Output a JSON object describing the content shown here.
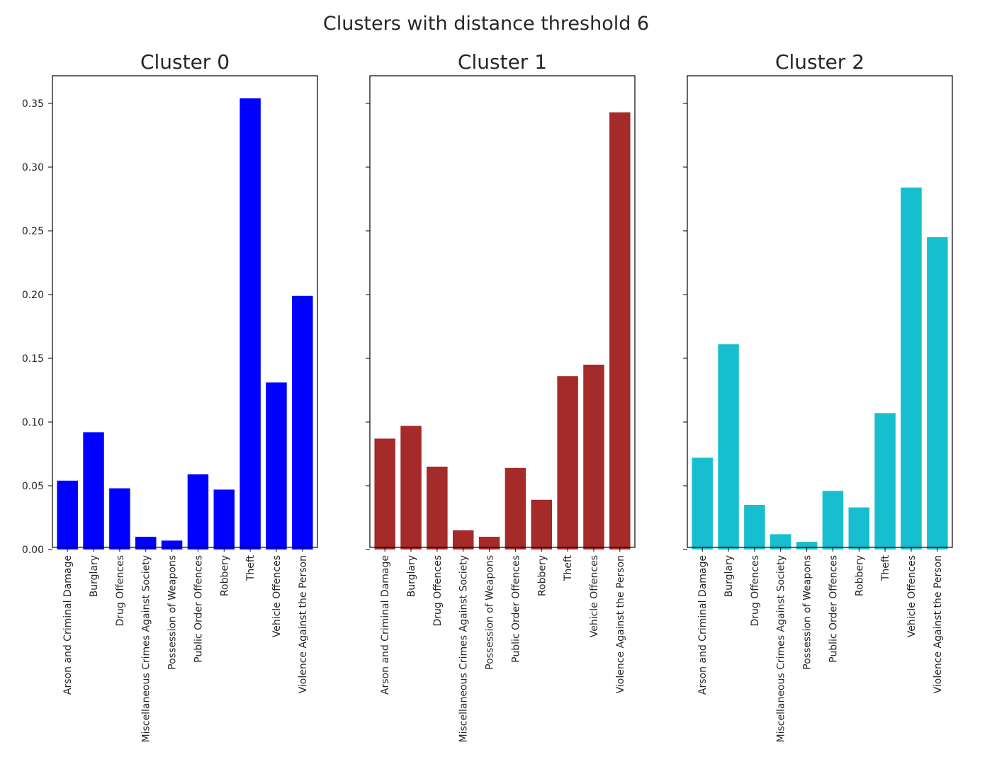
{
  "figure": {
    "suptitle": "Clusters with distance threshold 6"
  },
  "chart_data": [
    {
      "type": "bar",
      "title": "Cluster 0",
      "color": "#0000ff",
      "categories": [
        "Arson and Criminal Damage",
        "Burglary",
        "Drug Offences",
        "Miscellaneous Crimes Against Society",
        "Possession of Weapons",
        "Public Order Offences",
        "Robbery",
        "Theft",
        "Vehicle Offences",
        "Violence Against the Person"
      ],
      "values": [
        0.054,
        0.092,
        0.048,
        0.01,
        0.007,
        0.059,
        0.047,
        0.354,
        0.131,
        0.199
      ],
      "ylim": [
        0,
        0.37
      ],
      "yticks": [
        "0.00",
        "0.05",
        "0.10",
        "0.15",
        "0.20",
        "0.25",
        "0.30",
        "0.35"
      ],
      "show_ytick_labels": true,
      "xlabel": "",
      "ylabel": ""
    },
    {
      "type": "bar",
      "title": "Cluster 1",
      "color": "#a52a2a",
      "categories": [
        "Arson and Criminal Damage",
        "Burglary",
        "Drug Offences",
        "Miscellaneous Crimes Against Society",
        "Possession of Weapons",
        "Public Order Offences",
        "Robbery",
        "Theft",
        "Vehicle Offences",
        "Violence Against the Person"
      ],
      "values": [
        0.087,
        0.097,
        0.065,
        0.015,
        0.01,
        0.064,
        0.039,
        0.136,
        0.145,
        0.343
      ],
      "ylim": [
        0,
        0.37
      ],
      "yticks": [
        "0.00",
        "0.05",
        "0.10",
        "0.15",
        "0.20",
        "0.25",
        "0.30",
        "0.35"
      ],
      "show_ytick_labels": false,
      "xlabel": "",
      "ylabel": ""
    },
    {
      "type": "bar",
      "title": "Cluster 2",
      "color": "#17becf",
      "categories": [
        "Arson and Criminal Damage",
        "Burglary",
        "Drug Offences",
        "Miscellaneous Crimes Against Society",
        "Possession of Weapons",
        "Public Order Offences",
        "Robbery",
        "Theft",
        "Vehicle Offences",
        "Violence Against the Person"
      ],
      "values": [
        0.072,
        0.161,
        0.035,
        0.012,
        0.006,
        0.046,
        0.033,
        0.107,
        0.284,
        0.245
      ],
      "ylim": [
        0,
        0.37
      ],
      "yticks": [
        "0.00",
        "0.05",
        "0.10",
        "0.15",
        "0.20",
        "0.25",
        "0.30",
        "0.35"
      ],
      "show_ytick_labels": false,
      "xlabel": "",
      "ylabel": ""
    }
  ]
}
